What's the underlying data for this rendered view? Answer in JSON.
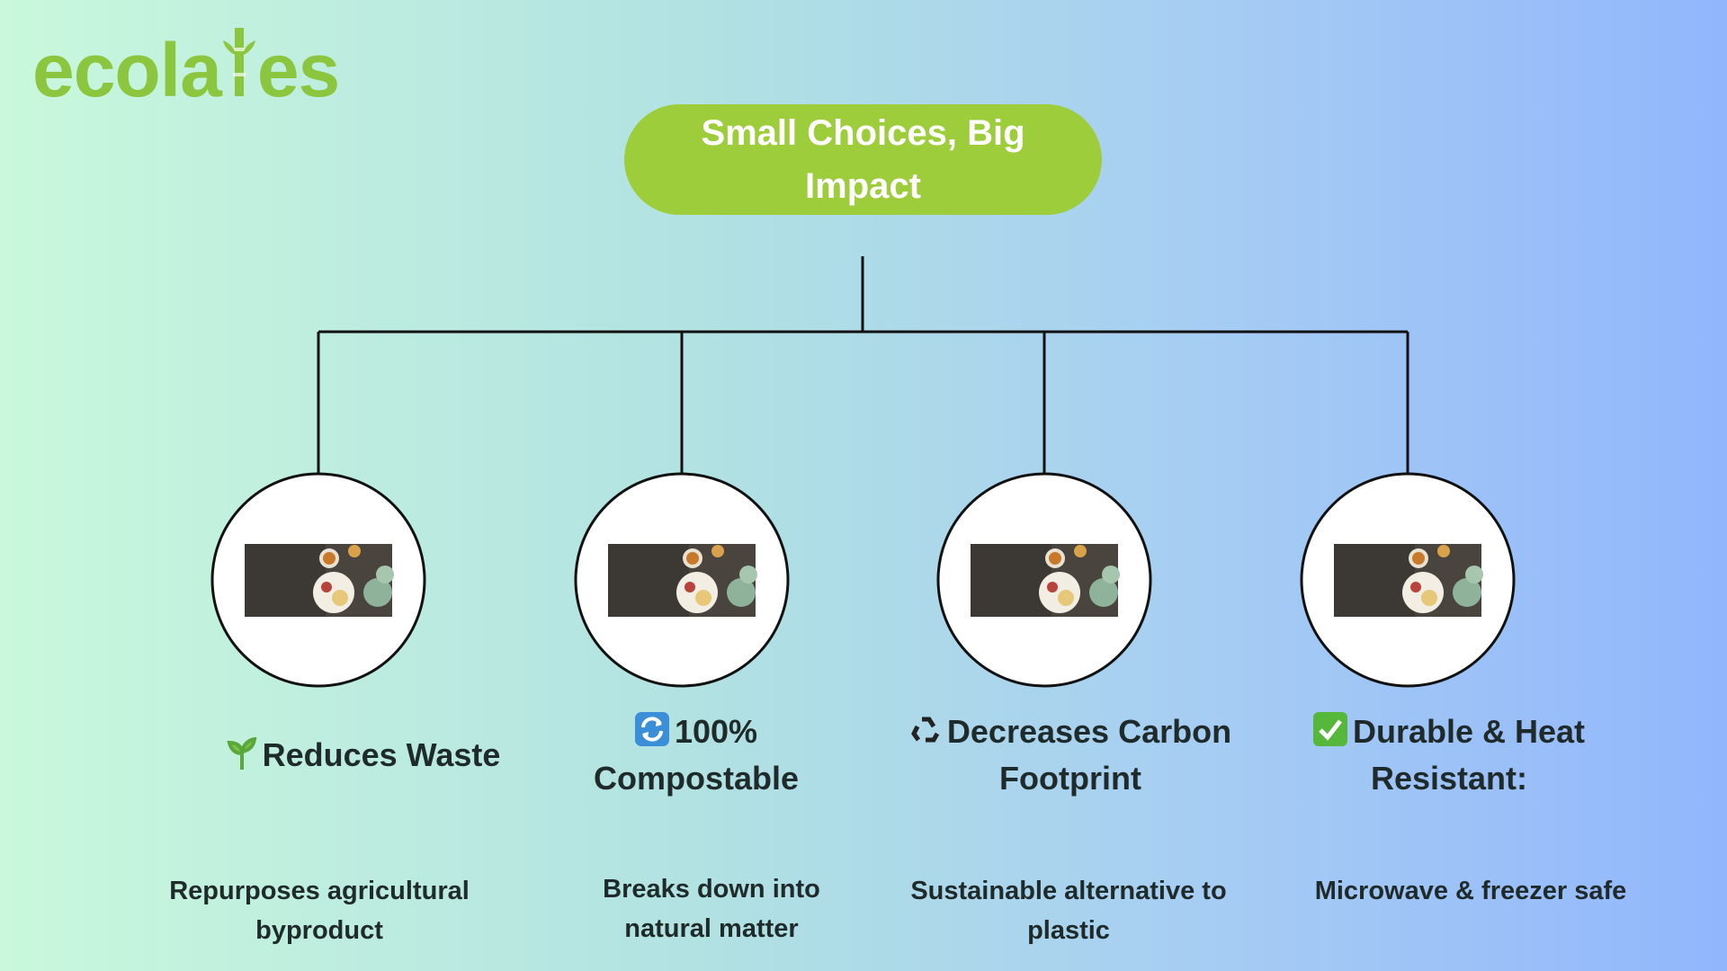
{
  "logo": {
    "prefix": "ecola",
    "suffix": "es"
  },
  "title": "Small Choices, Big Impact",
  "items": [
    {
      "heading": "Reduces Waste",
      "description": "Repurposes agricultural byproduct"
    },
    {
      "heading": "100% Compostable",
      "description": "Breaks down into natural matter"
    },
    {
      "heading": "Decreases Carbon Footprint",
      "description": "Sustainable alternative to plastic"
    },
    {
      "heading": "Durable & Heat Resistant:",
      "description": "Microwave & freezer safe"
    }
  ]
}
